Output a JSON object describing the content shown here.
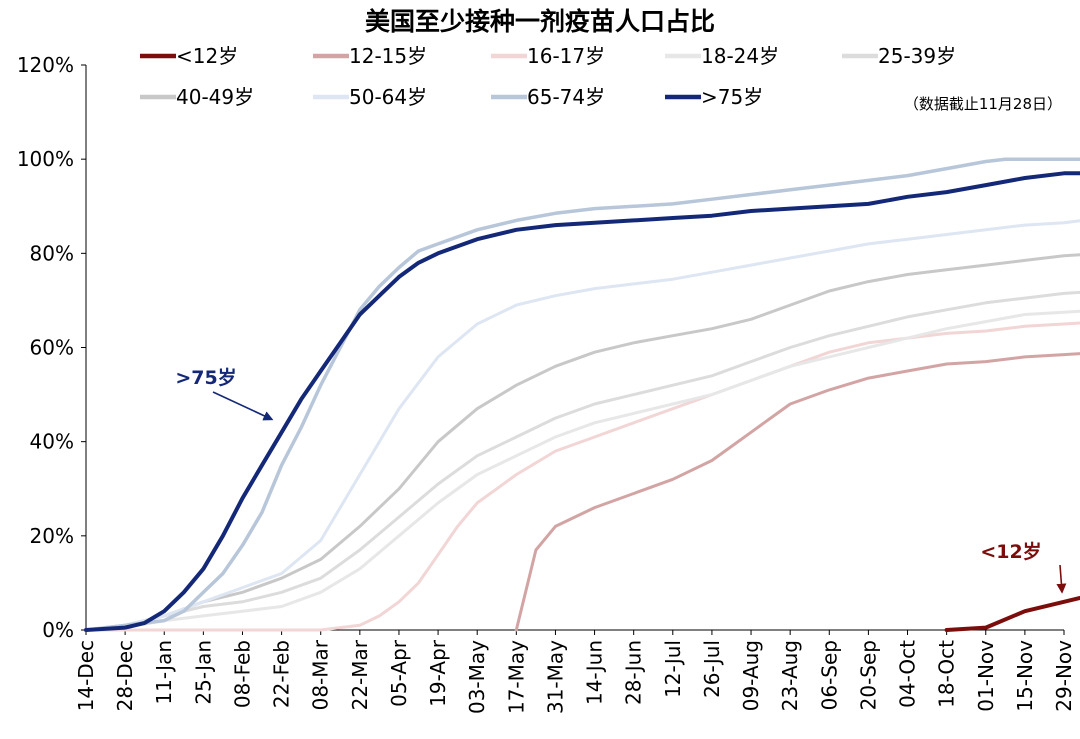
{
  "chart_data": {
    "type": "line",
    "title": "美国至少接种一剂疫苗人口占比",
    "note": "（数据截止11月28日）",
    "xlabel": "",
    "ylabel": "",
    "x_ticks": [
      "14-Dec",
      "28-Dec",
      "11-Jan",
      "25-Jan",
      "08-Feb",
      "22-Feb",
      "08-Mar",
      "22-Mar",
      "05-Apr",
      "19-Apr",
      "03-May",
      "17-May",
      "31-May",
      "14-Jun",
      "28-Jun",
      "12-Jul",
      "26-Jul",
      "09-Aug",
      "23-Aug",
      "06-Sep",
      "20-Sep",
      "04-Oct",
      "18-Oct",
      "01-Nov",
      "15-Nov",
      "29-Nov"
    ],
    "y_ticks": [
      "0%",
      "20%",
      "40%",
      "60%",
      "80%",
      "100%",
      "120%"
    ],
    "ylim": [
      0,
      120
    ],
    "grid": false,
    "legend_position": "top",
    "series": [
      {
        "name": "<12岁",
        "color": "#7b0d0d",
        "width": 4,
        "points": [
          [
            22,
            0
          ],
          [
            23,
            0.5
          ],
          [
            24,
            4
          ],
          [
            25,
            6
          ],
          [
            26,
            8
          ],
          [
            26.5,
            8.5
          ]
        ]
      },
      {
        "name": "12-15岁",
        "color": "#d3a4a4",
        "width": 3,
        "points": [
          [
            11,
            0
          ],
          [
            11.5,
            17
          ],
          [
            12,
            22
          ],
          [
            13,
            26
          ],
          [
            14,
            29
          ],
          [
            15,
            32
          ],
          [
            16,
            36
          ],
          [
            16.5,
            39
          ],
          [
            17,
            42
          ],
          [
            17.5,
            45
          ],
          [
            18,
            48
          ],
          [
            19,
            51
          ],
          [
            20,
            53.5
          ],
          [
            21,
            55
          ],
          [
            22,
            56.5
          ],
          [
            23,
            57
          ],
          [
            24,
            58
          ],
          [
            25,
            58.5
          ],
          [
            26,
            59
          ]
        ]
      },
      {
        "name": "16-17岁",
        "color": "#f2d5d5",
        "width": 3,
        "points": [
          [
            0,
            0
          ],
          [
            6,
            0
          ],
          [
            7,
            1
          ],
          [
            7.5,
            3
          ],
          [
            8,
            6
          ],
          [
            8.5,
            10
          ],
          [
            9,
            16
          ],
          [
            9.5,
            22
          ],
          [
            10,
            27
          ],
          [
            10.5,
            30
          ],
          [
            11,
            33
          ],
          [
            12,
            38
          ],
          [
            13,
            41
          ],
          [
            14,
            44
          ],
          [
            15,
            47
          ],
          [
            16,
            50
          ],
          [
            17,
            53
          ],
          [
            18,
            56
          ],
          [
            19,
            59
          ],
          [
            20,
            61
          ],
          [
            21,
            62
          ],
          [
            22,
            63
          ],
          [
            23,
            63.5
          ],
          [
            24,
            64.5
          ],
          [
            25,
            65
          ],
          [
            26,
            65.5
          ]
        ]
      },
      {
        "name": "18-24岁",
        "color": "#e7e7e7",
        "width": 3,
        "points": [
          [
            0,
            0
          ],
          [
            1,
            0.5
          ],
          [
            2,
            2
          ],
          [
            3,
            3
          ],
          [
            4,
            4
          ],
          [
            5,
            5
          ],
          [
            6,
            8
          ],
          [
            7,
            13
          ],
          [
            8,
            20
          ],
          [
            9,
            27
          ],
          [
            10,
            33
          ],
          [
            11,
            37
          ],
          [
            12,
            41
          ],
          [
            13,
            44
          ],
          [
            14,
            46
          ],
          [
            15,
            48
          ],
          [
            16,
            50
          ],
          [
            17,
            53
          ],
          [
            18,
            56
          ],
          [
            19,
            58
          ],
          [
            20,
            60
          ],
          [
            21,
            62
          ],
          [
            22,
            64
          ],
          [
            23,
            65.5
          ],
          [
            24,
            67
          ],
          [
            25,
            67.5
          ],
          [
            26,
            68
          ]
        ]
      },
      {
        "name": "25-39岁",
        "color": "#dcdcdc",
        "width": 3,
        "points": [
          [
            0,
            0
          ],
          [
            1,
            1
          ],
          [
            2,
            3
          ],
          [
            3,
            5
          ],
          [
            4,
            6
          ],
          [
            5,
            8
          ],
          [
            6,
            11
          ],
          [
            7,
            17
          ],
          [
            8,
            24
          ],
          [
            9,
            31
          ],
          [
            10,
            37
          ],
          [
            11,
            41
          ],
          [
            12,
            45
          ],
          [
            13,
            48
          ],
          [
            14,
            50
          ],
          [
            15,
            52
          ],
          [
            16,
            54
          ],
          [
            17,
            57
          ],
          [
            18,
            60
          ],
          [
            19,
            62.5
          ],
          [
            20,
            64.5
          ],
          [
            21,
            66.5
          ],
          [
            22,
            68
          ],
          [
            23,
            69.5
          ],
          [
            24,
            70.5
          ],
          [
            25,
            71.5
          ],
          [
            26,
            72
          ]
        ]
      },
      {
        "name": "40-49岁",
        "color": "#c8c8c8",
        "width": 3,
        "points": [
          [
            0,
            0
          ],
          [
            1,
            1
          ],
          [
            2,
            3
          ],
          [
            3,
            6
          ],
          [
            4,
            8
          ],
          [
            5,
            11
          ],
          [
            6,
            15
          ],
          [
            7,
            22
          ],
          [
            8,
            30
          ],
          [
            9,
            40
          ],
          [
            10,
            47
          ],
          [
            11,
            52
          ],
          [
            12,
            56
          ],
          [
            13,
            59
          ],
          [
            14,
            61
          ],
          [
            15,
            62.5
          ],
          [
            16,
            64
          ],
          [
            17,
            66
          ],
          [
            18,
            69
          ],
          [
            19,
            72
          ],
          [
            20,
            74
          ],
          [
            21,
            75.5
          ],
          [
            22,
            76.5
          ],
          [
            23,
            77.5
          ],
          [
            24,
            78.5
          ],
          [
            25,
            79.5
          ],
          [
            26,
            80
          ]
        ]
      },
      {
        "name": "50-64岁",
        "color": "#dde6f2",
        "width": 3,
        "points": [
          [
            0,
            0
          ],
          [
            1,
            1
          ],
          [
            2,
            3
          ],
          [
            3,
            6
          ],
          [
            4,
            9
          ],
          [
            5,
            12
          ],
          [
            6,
            19
          ],
          [
            7,
            33
          ],
          [
            8,
            47
          ],
          [
            9,
            58
          ],
          [
            10,
            65
          ],
          [
            11,
            69
          ],
          [
            12,
            71
          ],
          [
            13,
            72.5
          ],
          [
            14,
            73.5
          ],
          [
            15,
            74.5
          ],
          [
            16,
            76
          ],
          [
            17,
            77.5
          ],
          [
            18,
            79
          ],
          [
            19,
            80.5
          ],
          [
            20,
            82
          ],
          [
            21,
            83
          ],
          [
            22,
            84
          ],
          [
            23,
            85
          ],
          [
            24,
            86
          ],
          [
            25,
            86.5
          ],
          [
            26,
            87.5
          ]
        ]
      },
      {
        "name": "65-74岁",
        "color": "#b8c6da",
        "width": 3.5,
        "points": [
          [
            0,
            0
          ],
          [
            1,
            1
          ],
          [
            2,
            2
          ],
          [
            2.5,
            4
          ],
          [
            3,
            8
          ],
          [
            3.5,
            12
          ],
          [
            4,
            18
          ],
          [
            4.5,
            25
          ],
          [
            5,
            35
          ],
          [
            5.5,
            43
          ],
          [
            6,
            52
          ],
          [
            6.5,
            60
          ],
          [
            7,
            68
          ],
          [
            7.5,
            73
          ],
          [
            8,
            77
          ],
          [
            8.5,
            80.5
          ],
          [
            9,
            82
          ],
          [
            10,
            85
          ],
          [
            11,
            87
          ],
          [
            12,
            88.5
          ],
          [
            13,
            89.5
          ],
          [
            14,
            90
          ],
          [
            15,
            90.5
          ],
          [
            16,
            91.5
          ],
          [
            17,
            92.5
          ],
          [
            18,
            93.5
          ],
          [
            19,
            94.5
          ],
          [
            20,
            95.5
          ],
          [
            21,
            96.5
          ],
          [
            22,
            98
          ],
          [
            23,
            99.5
          ],
          [
            23.5,
            100
          ],
          [
            26,
            100
          ]
        ]
      },
      {
        "name": ">75岁",
        "color": "#142878",
        "width": 4,
        "points": [
          [
            0,
            0
          ],
          [
            1,
            0.5
          ],
          [
            1.5,
            1.5
          ],
          [
            2,
            4
          ],
          [
            2.5,
            8
          ],
          [
            3,
            13
          ],
          [
            3.5,
            20
          ],
          [
            4,
            28
          ],
          [
            4.5,
            35
          ],
          [
            5,
            42
          ],
          [
            5.5,
            49
          ],
          [
            6,
            55
          ],
          [
            6.5,
            61
          ],
          [
            7,
            67
          ],
          [
            7.5,
            71
          ],
          [
            8,
            75
          ],
          [
            8.5,
            78
          ],
          [
            9,
            80
          ],
          [
            9.5,
            81.5
          ],
          [
            10,
            83
          ],
          [
            11,
            85
          ],
          [
            12,
            86
          ],
          [
            13,
            86.5
          ],
          [
            14,
            87
          ],
          [
            15,
            87.5
          ],
          [
            16,
            88
          ],
          [
            17,
            89
          ],
          [
            18,
            89.5
          ],
          [
            19,
            90
          ],
          [
            20,
            90.5
          ],
          [
            21,
            92
          ],
          [
            22,
            93
          ],
          [
            23,
            94.5
          ],
          [
            24,
            96
          ],
          [
            25,
            97
          ],
          [
            26,
            97
          ]
        ]
      }
    ],
    "annotations": [
      {
        "text": ">75岁",
        "series": ">75岁",
        "color": "#142878"
      },
      {
        "text": "<12岁",
        "series": "<12岁",
        "color": "#7b0d0d"
      }
    ]
  }
}
